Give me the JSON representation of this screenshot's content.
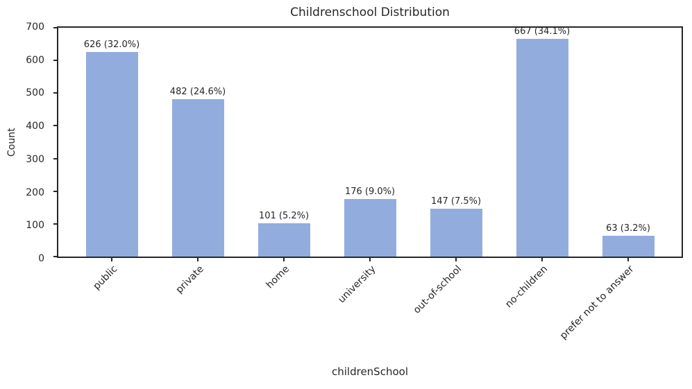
{
  "chart_data": {
    "type": "bar",
    "title": "Childrenschool Distribution",
    "xlabel": "childrenSchool",
    "ylabel": "Count",
    "categories": [
      "public",
      "private",
      "home",
      "university",
      "out-of-school",
      "no-children",
      "prefer not to answer"
    ],
    "values": [
      626,
      482,
      101,
      176,
      147,
      667,
      63
    ],
    "bar_labels": [
      "626 (32.0%)",
      "482 (24.6%)",
      "101 (5.2%)",
      "176 (9.0%)",
      "147 (7.5%)",
      "667 (34.1%)",
      "63 (3.2%)"
    ],
    "ylim": [
      0,
      700
    ],
    "yticks": [
      0,
      100,
      200,
      300,
      400,
      500,
      600,
      700
    ],
    "x_tick_rotation": 45,
    "grid": false,
    "legend": "none",
    "bar_color": "#92acde",
    "spine_color": "#262626",
    "text_color": "#262626"
  }
}
